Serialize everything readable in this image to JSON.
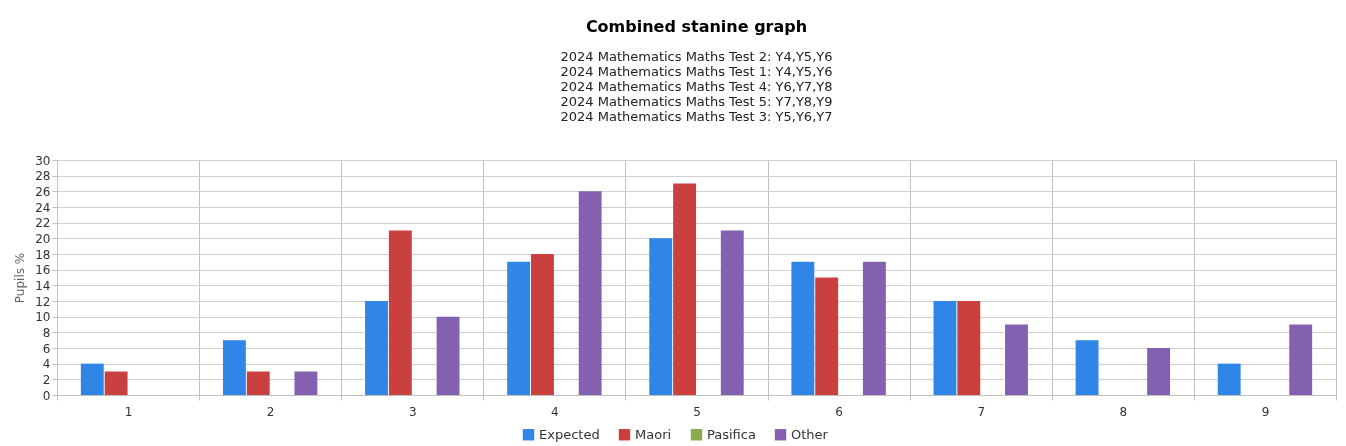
{
  "chart_data": {
    "type": "bar",
    "title": "Combined stanine graph",
    "subtitle": "2024 Mathematics Maths Test 2: Y4,Y5,Y6\n2024 Mathematics Maths Test 1: Y4,Y5,Y6\n2024 Mathematics Maths Test 4: Y6,Y7,Y8\n2024 Mathematics Maths Test 5: Y7,Y8,Y9\n2024 Mathematics Maths Test 3: Y5,Y6,Y7",
    "ylabel": "Pupils %",
    "categories": [
      "1",
      "2",
      "3",
      "4",
      "5",
      "6",
      "7",
      "8",
      "9"
    ],
    "series": [
      {
        "name": "Expected",
        "color": "#2f86e6",
        "values": [
          4,
          7,
          12,
          17,
          20,
          17,
          12,
          7,
          4
        ]
      },
      {
        "name": "Maori",
        "color": "#c9403f",
        "values": [
          3,
          3,
          21,
          18,
          27,
          15,
          12,
          null,
          null
        ]
      },
      {
        "name": "Pasifica",
        "color": "#8bab4a",
        "values": [
          null,
          null,
          null,
          null,
          null,
          null,
          null,
          null,
          null
        ]
      },
      {
        "name": "Other",
        "color": "#8460b0",
        "values": [
          null,
          3,
          10,
          26,
          21,
          17,
          9,
          6,
          9
        ]
      }
    ],
    "ylim": [
      0,
      30
    ],
    "yticks": [
      0,
      2,
      4,
      6,
      8,
      10,
      12,
      14,
      16,
      18,
      20,
      22,
      24,
      26,
      28,
      30
    ],
    "grid": true,
    "legend": "bottom"
  }
}
